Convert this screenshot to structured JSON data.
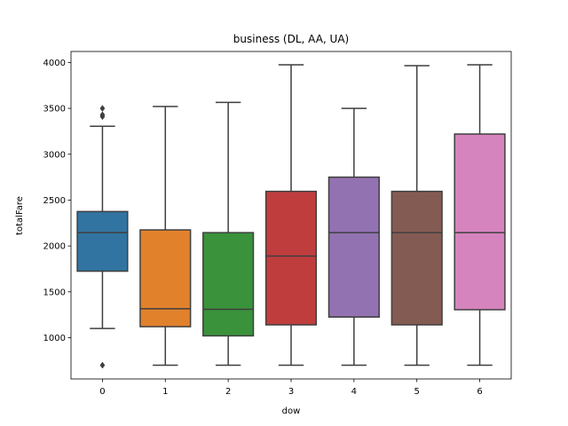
{
  "chart_data": {
    "type": "box",
    "title": "business (DL, AA, UA)",
    "xlabel": "dow",
    "ylabel": "totalFare",
    "ylim": [
      550,
      4120
    ],
    "yticks": [
      1000,
      1500,
      2000,
      2500,
      3000,
      3500,
      4000
    ],
    "categories": [
      "0",
      "1",
      "2",
      "3",
      "4",
      "5",
      "6"
    ],
    "colors": [
      "#3274a1",
      "#e1812c",
      "#3a923a",
      "#c03d3e",
      "#9372b2",
      "#845b53",
      "#d684bd"
    ],
    "series": [
      {
        "category": "0",
        "whisker_low": 1100,
        "q1": 1725,
        "median": 2145,
        "q3": 2375,
        "whisker_high": 3305,
        "outliers": [
          700,
          3410,
          3430,
          3500
        ]
      },
      {
        "category": "1",
        "whisker_low": 700,
        "q1": 1120,
        "median": 1315,
        "q3": 2175,
        "whisker_high": 3520,
        "outliers": []
      },
      {
        "category": "2",
        "whisker_low": 700,
        "q1": 1020,
        "median": 1310,
        "q3": 2145,
        "whisker_high": 3565,
        "outliers": []
      },
      {
        "category": "3",
        "whisker_low": 700,
        "q1": 1140,
        "median": 1890,
        "q3": 2595,
        "whisker_high": 3975,
        "outliers": []
      },
      {
        "category": "4",
        "whisker_low": 700,
        "q1": 1225,
        "median": 2145,
        "q3": 2750,
        "whisker_high": 3500,
        "outliers": []
      },
      {
        "category": "5",
        "whisker_low": 700,
        "q1": 1140,
        "median": 2145,
        "q3": 2595,
        "whisker_high": 3965,
        "outliers": []
      },
      {
        "category": "6",
        "whisker_low": 700,
        "q1": 1305,
        "median": 2145,
        "q3": 3220,
        "whisker_high": 3975,
        "outliers": []
      }
    ]
  }
}
